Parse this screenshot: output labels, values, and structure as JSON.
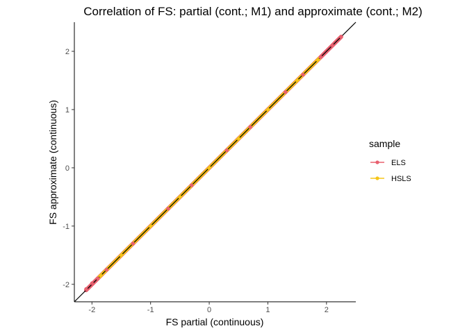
{
  "chart_data": {
    "type": "scatter",
    "title": "Correlation of FS: partial (cont.; M1) and approximate (cont.; M2)",
    "xlabel": "FS partial (continuous)",
    "ylabel": "FS approximate (continuous)",
    "xlim": [
      -2.3,
      2.5
    ],
    "ylim": [
      -2.3,
      2.5
    ],
    "x_ticks": [
      -2,
      -1,
      0,
      1,
      2
    ],
    "y_ticks": [
      -2,
      -1,
      0,
      1,
      2
    ],
    "x_tick_labels": [
      "-2",
      "-1",
      "0",
      "1",
      "2"
    ],
    "y_tick_labels": [
      "-2",
      "-1",
      "0",
      "1",
      "2"
    ],
    "grid": false,
    "reference_line": {
      "type": "identity",
      "slope": 1,
      "intercept": 0,
      "color": "#000000"
    },
    "legend": {
      "title": "sample",
      "placement": "right"
    },
    "series": [
      {
        "name": "ELS",
        "color": "#E8606F",
        "points": [
          [
            -2.1,
            -2.08
          ],
          [
            -2.0,
            -1.98
          ],
          [
            -1.9,
            -1.9
          ],
          [
            -1.75,
            -1.75
          ],
          [
            -1.5,
            -1.5
          ],
          [
            -1.3,
            -1.3
          ],
          [
            -1.0,
            -1.0
          ],
          [
            -0.7,
            -0.7
          ],
          [
            -0.3,
            -0.3
          ],
          [
            0.0,
            0.0
          ],
          [
            0.3,
            0.3
          ],
          [
            0.7,
            0.7
          ],
          [
            1.0,
            1.0
          ],
          [
            1.3,
            1.3
          ],
          [
            1.6,
            1.6
          ],
          [
            1.9,
            1.9
          ],
          [
            2.1,
            2.1
          ],
          [
            2.25,
            2.25
          ]
        ]
      },
      {
        "name": "HSLS",
        "color": "#F5C518",
        "points": [
          [
            -1.85,
            -1.85
          ],
          [
            -1.5,
            -1.5
          ],
          [
            -1.0,
            -1.0
          ],
          [
            -0.5,
            -0.5
          ],
          [
            0.0,
            0.0
          ],
          [
            0.5,
            0.5
          ],
          [
            1.0,
            1.0
          ],
          [
            1.5,
            1.5
          ],
          [
            1.85,
            1.85
          ]
        ]
      }
    ]
  }
}
